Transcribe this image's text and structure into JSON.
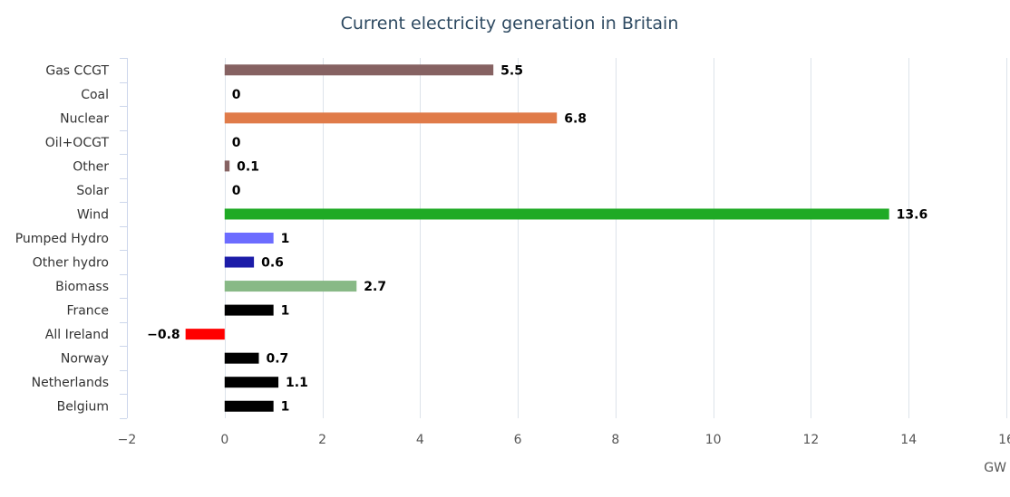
{
  "chart_data": {
    "type": "bar",
    "orientation": "horizontal",
    "title": "Current electricity generation in Britain",
    "unit": "GW",
    "categories": [
      "Gas CCGT",
      "Coal",
      "Nuclear",
      "Oil+OCGT",
      "Other",
      "Solar",
      "Wind",
      "Pumped Hydro",
      "Other hydro",
      "Biomass",
      "France",
      "All Ireland",
      "Norway",
      "Netherlands",
      "Belgium"
    ],
    "values": [
      5.5,
      0,
      6.8,
      0,
      0.1,
      0,
      13.6,
      1,
      0.6,
      2.7,
      1,
      -0.8,
      0.7,
      1.1,
      1
    ],
    "labels": [
      "5.5",
      "0",
      "6.8",
      "0",
      "0.1",
      "0",
      "13.6",
      "1",
      "0.6",
      "2.7",
      "1",
      "−0.8",
      "0.7",
      "1.1",
      "1"
    ],
    "colors": [
      "#866262",
      "#333333",
      "#e07b49",
      "#333333",
      "#866262",
      "#333333",
      "#1faa25",
      "#6c6cff",
      "#1c1ca8",
      "#88b986",
      "#000000",
      "#ff0000",
      "#000000",
      "#000000",
      "#000000"
    ],
    "xlim": [
      -2,
      16
    ],
    "ticks": [
      -2,
      0,
      2,
      4,
      6,
      8,
      10,
      12,
      14,
      16
    ],
    "tick_labels": [
      "−2",
      "0",
      "2",
      "4",
      "6",
      "8",
      "10",
      "12",
      "14",
      "16"
    ],
    "grid": true,
    "legend": "none"
  }
}
